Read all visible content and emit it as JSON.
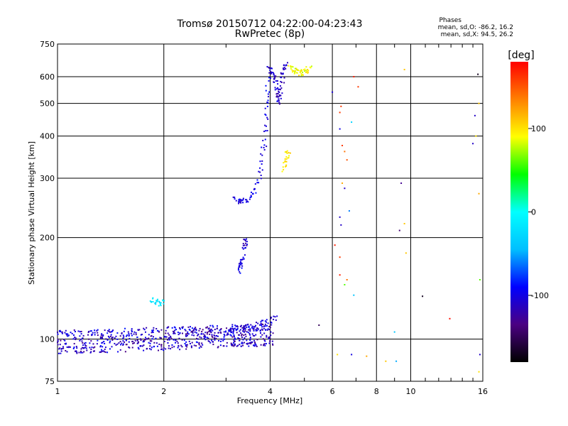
{
  "chart_data": {
    "type": "scatter",
    "title": "Tromsø 20150712 04:22:00-04:23:43",
    "subtitle": "RwPretec (8p)",
    "xlabel": "Frequency [MHz]",
    "ylabel": "Stationary phase Virtual Height [km]",
    "xscale": "log",
    "yscale": "log",
    "xlim": [
      1,
      16
    ],
    "ylim": [
      75,
      750
    ],
    "xticks": [
      1,
      2,
      4,
      6,
      8,
      10,
      16
    ],
    "yticks": [
      75,
      100,
      200,
      300,
      400,
      500,
      600,
      750
    ],
    "grid": true,
    "phase_stats": {
      "title": "Phases",
      "o_line": "mean, sd,O: -86.2, 16.2",
      "x_line": "mean, sd,X:  94.5, 26.2"
    },
    "colorbar": {
      "label": "[deg]",
      "range": [
        -180,
        180
      ],
      "ticks": [
        100,
        0,
        -100
      ],
      "colors": [
        "#000000",
        "#4b0082",
        "#0000ff",
        "#00bfff",
        "#00ffff",
        "#00ff00",
        "#ffff00",
        "#ff8000",
        "#ff0000"
      ]
    },
    "points_lowband": {
      "x_range": [
        1.0,
        4.1
      ],
      "y_base": 98,
      "spread": 8,
      "phase": -110,
      "count": 700
    },
    "traces": [
      {
        "name": "",
        "x": [
          3.18,
          3.25,
          3.35,
          3.5,
          3.62,
          3.72,
          3.8,
          3.86,
          3.9,
          3.93,
          3.96
        ],
        "y": [
          262,
          258,
          256,
          262,
          275,
          300,
          340,
          390,
          450,
          520,
          610
        ],
        "phase": -100
      },
      {
        "name": "",
        "x": [
          3.98,
          4.02,
          4.08,
          4.15,
          4.2,
          4.22,
          4.25,
          4.3,
          4.35,
          4.4,
          4.45
        ],
        "y": [
          640,
          620,
          600,
          570,
          540,
          520,
          500,
          560,
          610,
          640,
          650
        ],
        "phase": -110
      },
      {
        "name": "",
        "x": [
          4.55,
          4.65,
          4.75,
          4.85,
          4.95,
          5.1,
          5.2
        ],
        "y": [
          640,
          630,
          620,
          615,
          620,
          625,
          640
        ],
        "phase": 90
      },
      {
        "name": "",
        "x": [
          4.38,
          4.42,
          4.46,
          4.5
        ],
        "y": [
          320,
          335,
          350,
          365
        ],
        "phase": 100
      },
      {
        "name": "",
        "x": [
          3.28,
          3.3,
          3.32,
          3.35
        ],
        "y": [
          160,
          165,
          170,
          175
        ],
        "phase": -100
      },
      {
        "name": "",
        "x": [
          3.38,
          3.4,
          3.42
        ],
        "y": [
          188,
          192,
          196
        ],
        "phase": -110
      },
      {
        "name": "",
        "x": [
          1.85,
          1.9,
          1.95,
          2.0
        ],
        "y": [
          130,
          130,
          128,
          129
        ],
        "phase": -20
      },
      {
        "name": "",
        "x": [
          3.0,
          3.1,
          3.2,
          3.4,
          3.6,
          3.8,
          4.0,
          4.2
        ],
        "y": [
          104,
          106,
          108,
          108,
          110,
          112,
          114,
          118
        ],
        "phase": -105
      }
    ],
    "scatter_far": [
      {
        "x": 6.0,
        "y": 540,
        "phase": -105
      },
      {
        "x": 6.3,
        "y": 470,
        "phase": 160
      },
      {
        "x": 6.35,
        "y": 490,
        "phase": 160
      },
      {
        "x": 6.4,
        "y": 375,
        "phase": 160
      },
      {
        "x": 6.5,
        "y": 360,
        "phase": 140
      },
      {
        "x": 6.6,
        "y": 340,
        "phase": 150
      },
      {
        "x": 6.3,
        "y": 420,
        "phase": -100
      },
      {
        "x": 6.8,
        "y": 440,
        "phase": -30
      },
      {
        "x": 6.9,
        "y": 600,
        "phase": 170
      },
      {
        "x": 7.1,
        "y": 560,
        "phase": 160
      },
      {
        "x": 6.4,
        "y": 290,
        "phase": 120
      },
      {
        "x": 6.5,
        "y": 280,
        "phase": -110
      },
      {
        "x": 6.3,
        "y": 230,
        "phase": -110
      },
      {
        "x": 6.35,
        "y": 218,
        "phase": -110
      },
      {
        "x": 6.7,
        "y": 240,
        "phase": -60
      },
      {
        "x": 6.1,
        "y": 190,
        "phase": 170
      },
      {
        "x": 6.3,
        "y": 175,
        "phase": 160
      },
      {
        "x": 6.3,
        "y": 155,
        "phase": 170
      },
      {
        "x": 6.5,
        "y": 145,
        "phase": 60
      },
      {
        "x": 6.6,
        "y": 150,
        "phase": 140
      },
      {
        "x": 6.9,
        "y": 135,
        "phase": -40
      },
      {
        "x": 5.5,
        "y": 110,
        "phase": -150
      },
      {
        "x": 6.2,
        "y": 90,
        "phase": 100
      },
      {
        "x": 6.8,
        "y": 90,
        "phase": -100
      },
      {
        "x": 7.5,
        "y": 89,
        "phase": 120
      },
      {
        "x": 8.5,
        "y": 86,
        "phase": 110
      },
      {
        "x": 9.1,
        "y": 86,
        "phase": -50
      },
      {
        "x": 9.4,
        "y": 290,
        "phase": -130
      },
      {
        "x": 9.3,
        "y": 210,
        "phase": -140
      },
      {
        "x": 9.6,
        "y": 220,
        "phase": 110
      },
      {
        "x": 9.7,
        "y": 180,
        "phase": 110
      },
      {
        "x": 9.6,
        "y": 630,
        "phase": 110
      },
      {
        "x": 10.8,
        "y": 134,
        "phase": -170
      },
      {
        "x": 12.9,
        "y": 115,
        "phase": 175
      },
      {
        "x": 15.0,
        "y": 380,
        "phase": -110
      },
      {
        "x": 15.2,
        "y": 460,
        "phase": -110
      },
      {
        "x": 15.3,
        "y": 400,
        "phase": 100
      },
      {
        "x": 15.6,
        "y": 500,
        "phase": 110
      },
      {
        "x": 15.6,
        "y": 270,
        "phase": 120
      },
      {
        "x": 15.7,
        "y": 150,
        "phase": 60
      },
      {
        "x": 15.7,
        "y": 90,
        "phase": -110
      },
      {
        "x": 15.6,
        "y": 80,
        "phase": 100
      },
      {
        "x": 15.5,
        "y": 610,
        "phase": -170
      },
      {
        "x": 9.0,
        "y": 105,
        "phase": -40
      }
    ]
  }
}
